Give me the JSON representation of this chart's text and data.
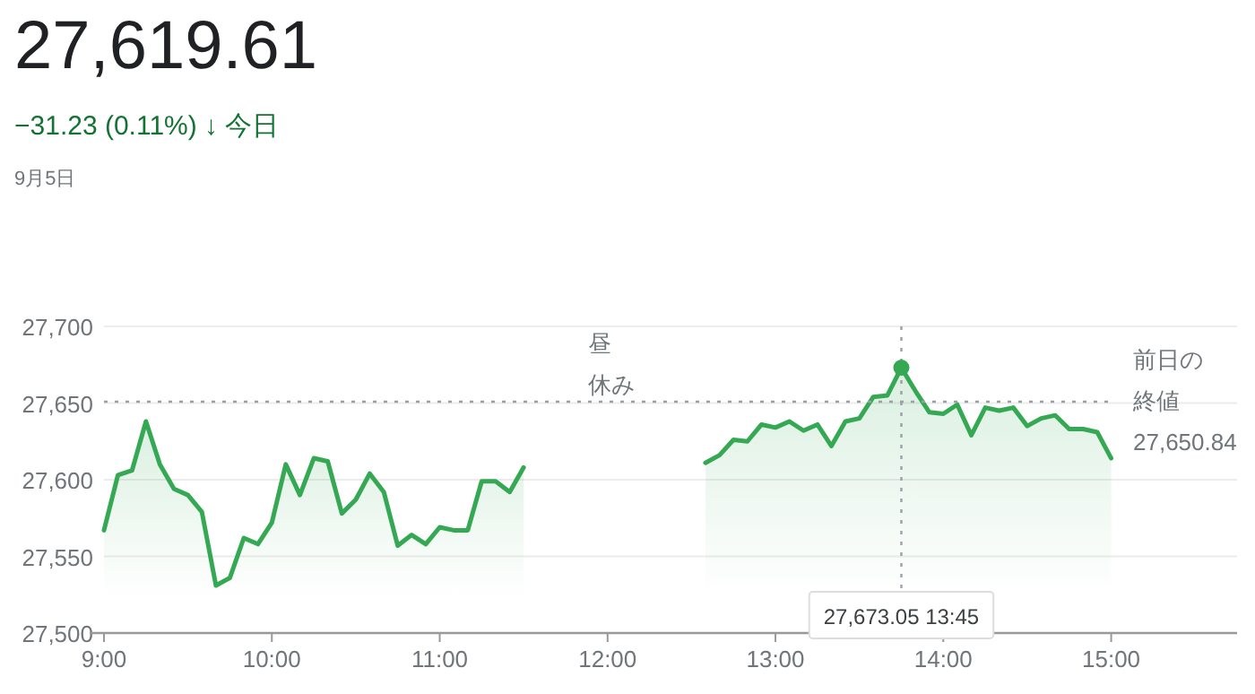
{
  "chart_data": {
    "type": "area",
    "title": "27,619.61",
    "subtitle": "−31.23 (0.11%) ↓ 今日",
    "annotations": [
      "9月5日",
      "昼休み",
      "27,673.05  13:45"
    ],
    "series": [
      {
        "color": "#34a853",
        "x": [
          9.0,
          9.083,
          9.167,
          9.25,
          9.333,
          9.417,
          9.5,
          9.583,
          9.667,
          9.75,
          9.833,
          9.917,
          10.0,
          10.083,
          10.167,
          10.25,
          10.333,
          10.417,
          10.5,
          10.583,
          10.667,
          10.75,
          10.833,
          10.917,
          11.0,
          11.083,
          11.167,
          11.25,
          11.333,
          11.417,
          11.5
        ],
        "values": [
          27567,
          27603,
          27606,
          27638,
          27610,
          27594,
          27590,
          27579,
          27531,
          27536,
          27562,
          27558,
          27572,
          27610,
          27590,
          27614,
          27612,
          27578,
          27587,
          27604,
          27592,
          27557,
          27564,
          27558,
          27569,
          27567,
          27567,
          27599,
          27599,
          27592,
          27608
        ]
      },
      {
        "color": "#34a853",
        "x": [
          12.583,
          12.667,
          12.75,
          12.833,
          12.917,
          13.0,
          13.083,
          13.167,
          13.25,
          13.333,
          13.417,
          13.5,
          13.583,
          13.667,
          13.75,
          13.833,
          13.917,
          14.0,
          14.083,
          14.167,
          14.25,
          14.333,
          14.417,
          14.5,
          14.583,
          14.667,
          14.75,
          14.833,
          14.917,
          15.0
        ],
        "values": [
          27611,
          27616,
          27626,
          27625,
          27636,
          27634,
          27638,
          27632,
          27636,
          27622,
          27638,
          27640,
          27654,
          27655,
          27673.05,
          27658,
          27644,
          27643,
          27649,
          27629,
          27647,
          27645,
          27647,
          27635,
          27640,
          27642,
          27633,
          27633,
          27631,
          27614
        ]
      }
    ],
    "xlim": [
      9,
      15.75
    ],
    "ylim": [
      27500,
      27700
    ],
    "xticks": [
      {
        "value": 9,
        "label": "9:00"
      },
      {
        "value": 10,
        "label": "10:00"
      },
      {
        "value": 11,
        "label": "11:00"
      },
      {
        "value": 12,
        "label": "12:00"
      },
      {
        "value": 13,
        "label": "13:00"
      },
      {
        "value": 14,
        "label": "14:00"
      },
      {
        "value": 15,
        "label": "15:00"
      }
    ],
    "yticks": [
      {
        "value": 27500,
        "label": "27,500"
      },
      {
        "value": 27550,
        "label": "27,550"
      },
      {
        "value": 27600,
        "label": "27,600"
      },
      {
        "value": 27650,
        "label": "27,650"
      },
      {
        "value": 27700,
        "label": "27,700"
      }
    ],
    "grid": "y",
    "line_style": "solid",
    "ref_lines": [
      {
        "axis": "y",
        "value": 27650.84,
        "label": "前日の終値 27,650.84",
        "line_style": "dotted",
        "color": "#9aa0a6"
      },
      {
        "axis": "x",
        "value": 13.75,
        "line_style": "dotted",
        "color": "#9aa0a6"
      }
    ]
  }
}
